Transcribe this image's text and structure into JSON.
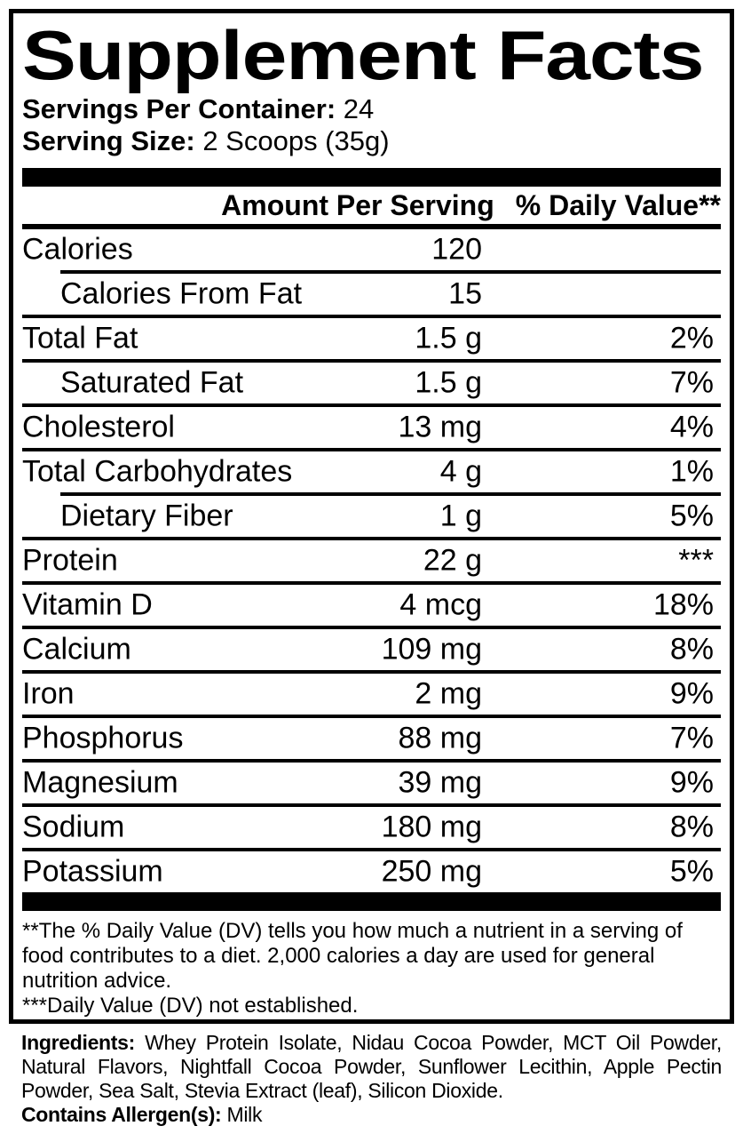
{
  "panel": {
    "title": "Supplement Facts",
    "servings_label": "Servings Per Container:",
    "servings_value": "24",
    "serving_size_label": "Serving Size:",
    "serving_size_value": "2 Scoops (35g)"
  },
  "table": {
    "header": {
      "amount": "Amount Per Serving",
      "daily_value": "% Daily Value**"
    },
    "rows": [
      {
        "name": "Calories",
        "amount": "120",
        "dv": "",
        "indent": false,
        "sep": "none"
      },
      {
        "name": "Calories From Fat",
        "amount": "15",
        "dv": "",
        "indent": true,
        "sep": "indent"
      },
      {
        "name": "Total Fat",
        "amount": "1.5 g",
        "dv": "2%",
        "indent": false,
        "sep": "full"
      },
      {
        "name": "Saturated Fat",
        "amount": "1.5 g",
        "dv": "7%",
        "indent": true,
        "sep": "full"
      },
      {
        "name": "Cholesterol",
        "amount": "13 mg",
        "dv": "4%",
        "indent": false,
        "sep": "full"
      },
      {
        "name": "Total Carbohydrates",
        "amount": "4 g",
        "dv": "1%",
        "indent": false,
        "sep": "full"
      },
      {
        "name": "Dietary Fiber",
        "amount": "1 g",
        "dv": "5%",
        "indent": true,
        "sep": "indent"
      },
      {
        "name": "Protein",
        "amount": "22 g",
        "dv": "***",
        "indent": false,
        "sep": "full"
      },
      {
        "name": "Vitamin D",
        "amount": "4 mcg",
        "dv": "18%",
        "indent": false,
        "sep": "full"
      },
      {
        "name": "Calcium",
        "amount": "109 mg",
        "dv": "8%",
        "indent": false,
        "sep": "full"
      },
      {
        "name": "Iron",
        "amount": "2 mg",
        "dv": "9%",
        "indent": false,
        "sep": "full"
      },
      {
        "name": "Phosphorus",
        "amount": "88 mg",
        "dv": "7%",
        "indent": false,
        "sep": "full"
      },
      {
        "name": "Magnesium",
        "amount": "39 mg",
        "dv": "9%",
        "indent": false,
        "sep": "full"
      },
      {
        "name": "Sodium",
        "amount": "180 mg",
        "dv": "8%",
        "indent": false,
        "sep": "full"
      },
      {
        "name": "Potassium",
        "amount": "250 mg",
        "dv": "5%",
        "indent": false,
        "sep": "full"
      }
    ]
  },
  "footnotes": [
    "**The % Daily Value (DV) tells you how much a nutrient in a serving of food contributes to a diet. 2,000 calories a day are used for general nutrition advice.",
    "***Daily Value (DV) not established."
  ],
  "ingredients": {
    "label": "Ingredients:",
    "text": "Whey Protein Isolate, Nidau Cocoa Powder, MCT Oil Powder, Natural Flavors, Nightfall Cocoa Powder, Sunflower Lecithin, Apple Pectin Powder, Sea Salt, Stevia Extract (leaf), Silicon Dioxide."
  },
  "allergens": {
    "label": "Contains Allergen(s):",
    "value": "Milk"
  },
  "colors": {
    "ink": "#000000",
    "background": "#ffffff"
  }
}
